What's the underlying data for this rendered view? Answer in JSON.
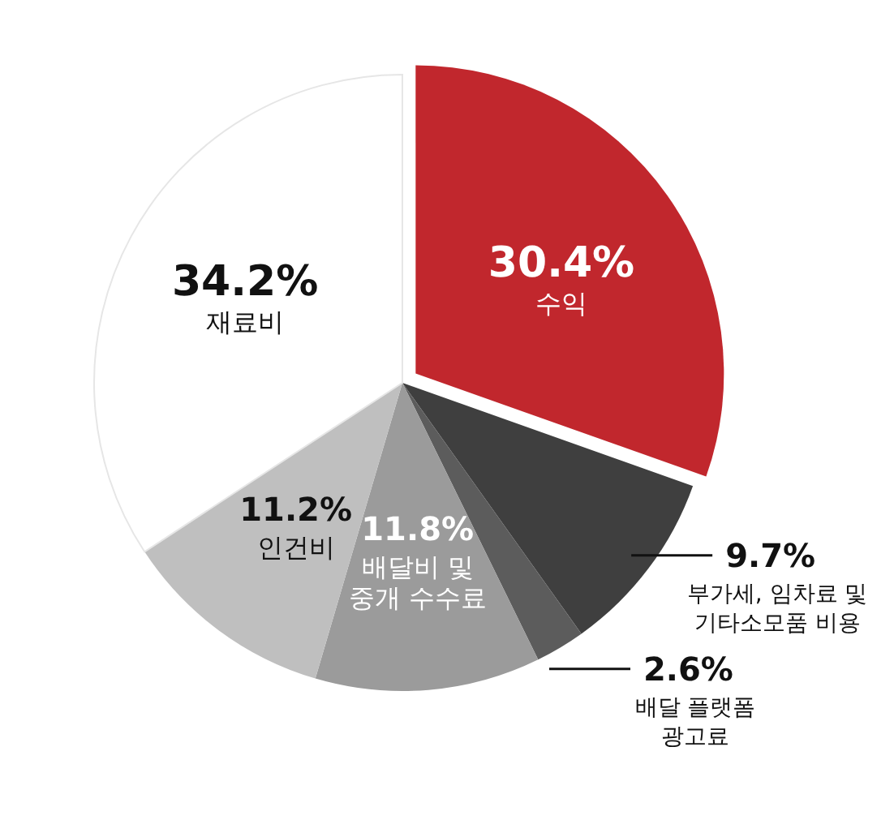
{
  "chart_data": {
    "type": "pie",
    "categories": [
      "수익",
      "부가세, 임차료 및\n기타소모품 비용",
      "배달 플랫폼\n광고료",
      "배달비 및\n중개 수수료",
      "인건비",
      "재료비"
    ],
    "values": [
      30.4,
      9.7,
      2.6,
      11.8,
      11.2,
      34.2
    ],
    "colors": [
      "#c1272d",
      "#3f3f3f",
      "#5c5c5c",
      "#9b9b9b",
      "#bfbfbf",
      "#ffffff"
    ],
    "value_labels": [
      "30.4%",
      "9.7%",
      "2.6%",
      "11.8%",
      "11.2%",
      "34.2%"
    ]
  }
}
